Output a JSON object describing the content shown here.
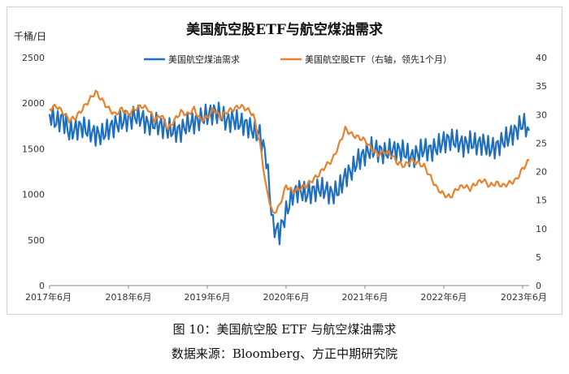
{
  "chart_data": {
    "type": "line",
    "title": "美国航空股ETF与航空煤油需求",
    "y_left_unit": "千桶/日",
    "y_left_range": [
      0,
      2500
    ],
    "y_left_ticks": [
      "0",
      "500",
      "1000",
      "1500",
      "2000",
      "2500"
    ],
    "y_right_range": [
      0,
      40
    ],
    "y_right_ticks": [
      "0",
      "5",
      "10",
      "15",
      "20",
      "25",
      "30",
      "35",
      "40"
    ],
    "x_range": [
      "2017-06",
      "2023-07"
    ],
    "x_ticks": [
      "2017年6月",
      "2018年6月",
      "2019年6月",
      "2020年6月",
      "2021年6月",
      "2022年6月",
      "2023年6月"
    ],
    "grid": false,
    "legend_position": "top",
    "series": [
      {
        "name": "美国航空煤油需求",
        "axis": "left",
        "color": "#1f6fbf",
        "points": [
          [
            "2017-06",
            1880
          ],
          [
            "2017-07",
            1790
          ],
          [
            "2017-08",
            1830
          ],
          [
            "2017-09",
            1680
          ],
          [
            "2017-10",
            1720
          ],
          [
            "2017-11",
            1740
          ],
          [
            "2017-12",
            1690
          ],
          [
            "2018-01",
            1660
          ],
          [
            "2018-02",
            1650
          ],
          [
            "2018-03",
            1720
          ],
          [
            "2018-04",
            1760
          ],
          [
            "2018-05",
            1800
          ],
          [
            "2018-06",
            1820
          ],
          [
            "2018-07",
            1860
          ],
          [
            "2018-08",
            1840
          ],
          [
            "2018-09",
            1760
          ],
          [
            "2018-10",
            1780
          ],
          [
            "2018-11",
            1750
          ],
          [
            "2018-12",
            1720
          ],
          [
            "2019-01",
            1690
          ],
          [
            "2019-02",
            1700
          ],
          [
            "2019-03",
            1770
          ],
          [
            "2019-04",
            1790
          ],
          [
            "2019-05",
            1830
          ],
          [
            "2019-06",
            1870
          ],
          [
            "2019-07",
            1900
          ],
          [
            "2019-08",
            1880
          ],
          [
            "2019-09",
            1800
          ],
          [
            "2019-10",
            1820
          ],
          [
            "2019-11",
            1780
          ],
          [
            "2019-12",
            1760
          ],
          [
            "2020-01",
            1700
          ],
          [
            "2020-02",
            1660
          ],
          [
            "2020-03",
            1400
          ],
          [
            "2020-04",
            650
          ],
          [
            "2020-05",
            580
          ],
          [
            "2020-06",
            800
          ],
          [
            "2020-07",
            1000
          ],
          [
            "2020-08",
            1050
          ],
          [
            "2020-09",
            1000
          ],
          [
            "2020-10",
            1030
          ],
          [
            "2020-11",
            1060
          ],
          [
            "2020-12",
            1050
          ],
          [
            "2021-01",
            1000
          ],
          [
            "2021-02",
            1050
          ],
          [
            "2021-03",
            1200
          ],
          [
            "2021-04",
            1260
          ],
          [
            "2021-05",
            1380
          ],
          [
            "2021-06",
            1440
          ],
          [
            "2021-07",
            1500
          ],
          [
            "2021-08",
            1480
          ],
          [
            "2021-09",
            1450
          ],
          [
            "2021-10",
            1490
          ],
          [
            "2021-11",
            1480
          ],
          [
            "2021-12",
            1470
          ],
          [
            "2022-01",
            1400
          ],
          [
            "2022-02",
            1450
          ],
          [
            "2022-03",
            1500
          ],
          [
            "2022-04",
            1480
          ],
          [
            "2022-05",
            1520
          ],
          [
            "2022-06",
            1580
          ],
          [
            "2022-07",
            1600
          ],
          [
            "2022-08",
            1580
          ],
          [
            "2022-09",
            1540
          ],
          [
            "2022-10",
            1570
          ],
          [
            "2022-11",
            1550
          ],
          [
            "2022-12",
            1560
          ],
          [
            "2023-01",
            1500
          ],
          [
            "2023-02",
            1520
          ],
          [
            "2023-03",
            1580
          ],
          [
            "2023-04",
            1640
          ],
          [
            "2023-05",
            1700
          ],
          [
            "2023-06",
            1780
          ],
          [
            "2023-07",
            1700
          ]
        ]
      },
      {
        "name": "美国航空股ETF（右轴，领先1个月）",
        "axis": "right",
        "color": "#e8812e",
        "points": [
          [
            "2017-06",
            31.0
          ],
          [
            "2017-07",
            31.5
          ],
          [
            "2017-08",
            30.5
          ],
          [
            "2017-09",
            29.0
          ],
          [
            "2017-10",
            29.5
          ],
          [
            "2017-11",
            31.0
          ],
          [
            "2017-12",
            32.5
          ],
          [
            "2018-01",
            34.0
          ],
          [
            "2018-02",
            32.5
          ],
          [
            "2018-03",
            31.0
          ],
          [
            "2018-04",
            30.0
          ],
          [
            "2018-05",
            31.0
          ],
          [
            "2018-06",
            30.0
          ],
          [
            "2018-07",
            31.0
          ],
          [
            "2018-08",
            31.5
          ],
          [
            "2018-09",
            31.0
          ],
          [
            "2018-10",
            29.0
          ],
          [
            "2018-11",
            30.0
          ],
          [
            "2018-12",
            27.5
          ],
          [
            "2019-01",
            29.0
          ],
          [
            "2019-02",
            30.5
          ],
          [
            "2019-03",
            30.0
          ],
          [
            "2019-04",
            31.0
          ],
          [
            "2019-05",
            29.0
          ],
          [
            "2019-06",
            29.5
          ],
          [
            "2019-07",
            31.0
          ],
          [
            "2019-08",
            29.5
          ],
          [
            "2019-09",
            30.5
          ],
          [
            "2019-10",
            31.0
          ],
          [
            "2019-11",
            31.5
          ],
          [
            "2019-12",
            31.0
          ],
          [
            "2020-01",
            30.0
          ],
          [
            "2020-02",
            25.0
          ],
          [
            "2020-03",
            17.0
          ],
          [
            "2020-04",
            12.5
          ],
          [
            "2020-05",
            14.0
          ],
          [
            "2020-06",
            17.5
          ],
          [
            "2020-07",
            16.5
          ],
          [
            "2020-08",
            17.0
          ],
          [
            "2020-09",
            17.5
          ],
          [
            "2020-10",
            18.5
          ],
          [
            "2020-11",
            19.5
          ],
          [
            "2020-12",
            21.0
          ],
          [
            "2021-01",
            22.0
          ],
          [
            "2021-02",
            24.5
          ],
          [
            "2021-03",
            27.5
          ],
          [
            "2021-04",
            26.5
          ],
          [
            "2021-05",
            26.0
          ],
          [
            "2021-06",
            25.5
          ],
          [
            "2021-07",
            24.0
          ],
          [
            "2021-08",
            23.0
          ],
          [
            "2021-09",
            23.5
          ],
          [
            "2021-10",
            23.0
          ],
          [
            "2021-11",
            21.5
          ],
          [
            "2021-12",
            21.0
          ],
          [
            "2022-01",
            22.0
          ],
          [
            "2022-02",
            21.5
          ],
          [
            "2022-03",
            21.0
          ],
          [
            "2022-04",
            19.0
          ],
          [
            "2022-05",
            17.0
          ],
          [
            "2022-06",
            16.0
          ],
          [
            "2022-07",
            15.5
          ],
          [
            "2022-08",
            17.0
          ],
          [
            "2022-09",
            17.5
          ],
          [
            "2022-10",
            17.0
          ],
          [
            "2022-11",
            18.0
          ],
          [
            "2022-12",
            18.5
          ],
          [
            "2023-01",
            17.5
          ],
          [
            "2023-02",
            18.0
          ],
          [
            "2023-03",
            17.5
          ],
          [
            "2023-04",
            18.0
          ],
          [
            "2023-05",
            18.5
          ],
          [
            "2023-06",
            20.5
          ],
          [
            "2023-07",
            22.0
          ]
        ]
      }
    ]
  },
  "caption": {
    "figure": "图 10：美国航空股 ETF 与航空煤油需求",
    "source": "数据来源：Bloomberg、方正中期研究院"
  }
}
